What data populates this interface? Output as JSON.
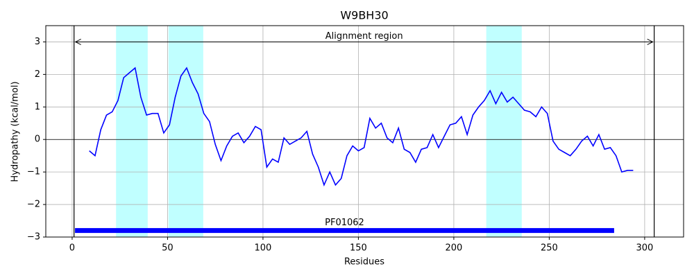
{
  "chart_data": {
    "type": "line",
    "title": "W9BH30",
    "xlabel": "Residues",
    "ylabel": "Hydropathy (kcal/mol)",
    "x": [
      9,
      12,
      15,
      18,
      21,
      24,
      27,
      30,
      33,
      36,
      39,
      42,
      45,
      48,
      51,
      54,
      57,
      60,
      63,
      66,
      69,
      72,
      75,
      78,
      81,
      84,
      87,
      90,
      93,
      96,
      99,
      102,
      105,
      108,
      111,
      114,
      117,
      120,
      123,
      126,
      129,
      132,
      135,
      138,
      141,
      144,
      147,
      150,
      153,
      156,
      159,
      162,
      165,
      168,
      171,
      174,
      177,
      180,
      183,
      186,
      189,
      192,
      195,
      198,
      201,
      204,
      207,
      210,
      213,
      216,
      219,
      222,
      225,
      228,
      231,
      234,
      237,
      240,
      243,
      246,
      249,
      252,
      255,
      258,
      261,
      264,
      267,
      270,
      273,
      276,
      279,
      282,
      285,
      288,
      291,
      294
    ],
    "series": [
      {
        "color": "#0000ff",
        "values": [
          -0.35,
          -0.5,
          0.3,
          0.75,
          0.85,
          1.2,
          1.9,
          2.05,
          2.2,
          1.3,
          0.75,
          0.8,
          0.8,
          0.2,
          0.45,
          1.3,
          1.95,
          2.2,
          1.75,
          1.4,
          0.8,
          0.55,
          -0.15,
          -0.65,
          -0.2,
          0.1,
          0.2,
          -0.1,
          0.1,
          0.4,
          0.3,
          -0.85,
          -0.6,
          -0.7,
          0.05,
          -0.15,
          -0.05,
          0.05,
          0.25,
          -0.45,
          -0.85,
          -1.4,
          -1.0,
          -1.4,
          -1.2,
          -0.5,
          -0.2,
          -0.35,
          -0.25,
          0.65,
          0.35,
          0.5,
          0.05,
          -0.1,
          0.35,
          -0.3,
          -0.4,
          -0.7,
          -0.3,
          -0.25,
          0.15,
          -0.25,
          0.1,
          0.45,
          0.5,
          0.7,
          0.15,
          0.75,
          1.0,
          1.2,
          1.5,
          1.1,
          1.45,
          1.15,
          1.3,
          1.1,
          0.9,
          0.85,
          0.7,
          1.0,
          0.8,
          -0.05,
          -0.3,
          -0.4,
          -0.5,
          -0.3,
          -0.05,
          0.1,
          -0.2,
          0.15,
          -0.3,
          -0.25,
          -0.5,
          -1.0,
          -0.95,
          -0.95
        ]
      }
    ],
    "xlim": [
      -13.8,
      320.4
    ],
    "ylim": [
      -3,
      3.5
    ],
    "xticks": [
      0,
      50,
      100,
      150,
      200,
      250,
      300
    ],
    "yticks": [
      {
        "value": -3,
        "label": "−3"
      },
      {
        "value": -2,
        "label": "−2"
      },
      {
        "value": -1,
        "label": "−1"
      },
      0,
      1,
      2,
      3
    ],
    "grid": true,
    "zero_line": 0,
    "shaded_regions": [
      {
        "start": 23,
        "end": 39.6,
        "color": "#c0ffff"
      },
      {
        "start": 50.5,
        "end": 68.7,
        "color": "#c0ffff"
      },
      {
        "start": 217,
        "end": 235.6,
        "color": "#c0ffff"
      }
    ],
    "vlines": [
      1,
      305
    ],
    "alignment": {
      "label": "Alignment region",
      "start": 1,
      "end": 305,
      "y": 3
    },
    "domain": {
      "label": "PF01062",
      "start": 1.5,
      "end": 284,
      "y": -2.8,
      "color": "#0000ff"
    }
  }
}
